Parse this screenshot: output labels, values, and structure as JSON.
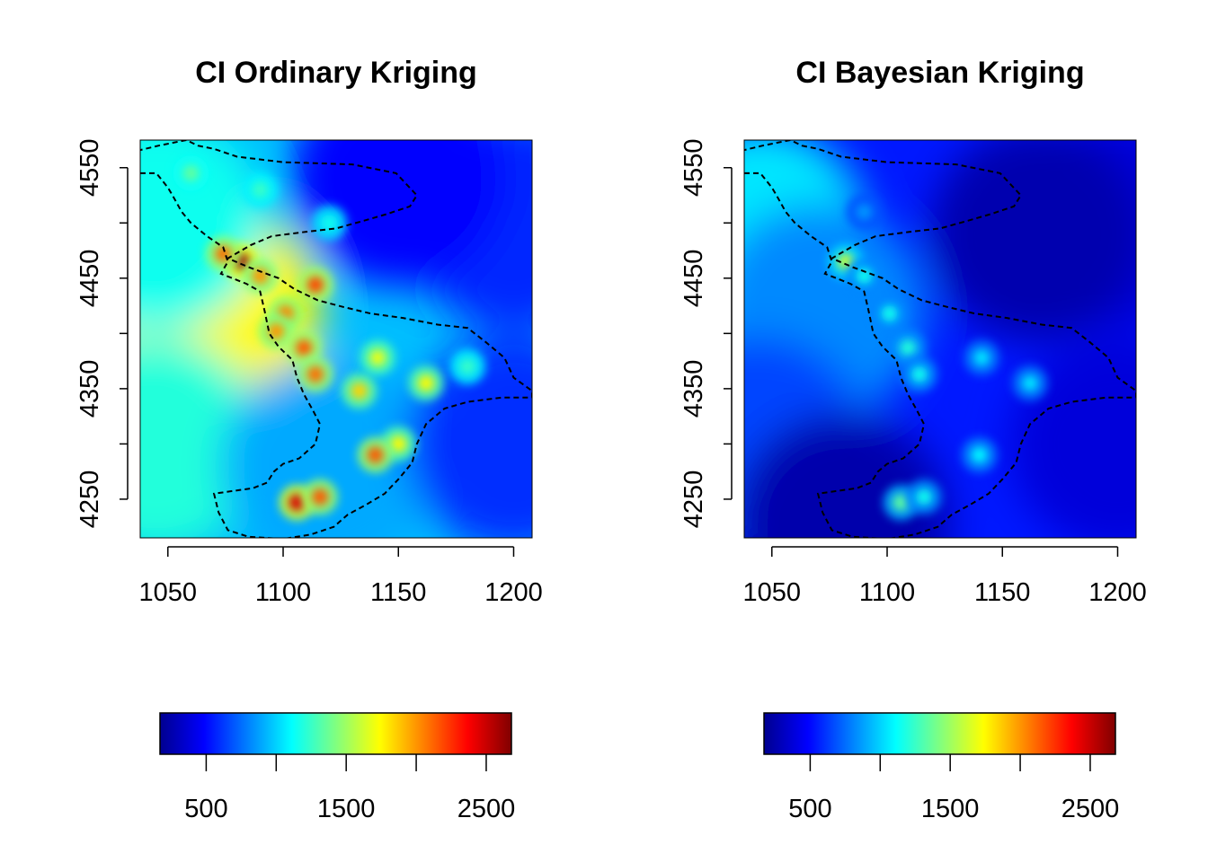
{
  "colorscale": [
    "#00008F",
    "#0000FF",
    "#0080FF",
    "#00FFFF",
    "#80FF80",
    "#FFFF00",
    "#FF8000",
    "#FF0000",
    "#800000"
  ],
  "boundary_color": "#000000",
  "chart_data": [
    {
      "type": "heatmap",
      "title": "CI Ordinary Kriging",
      "xlim": [
        1038,
        1208
      ],
      "ylim": [
        4215,
        4575
      ],
      "xticks": [
        1050,
        1100,
        1150,
        1200
      ],
      "yticks": [
        4250,
        4350,
        4450,
        4550
      ],
      "colorbar": {
        "range": [
          170,
          2680
        ],
        "ticks": [
          500,
          1500,
          2500
        ],
        "minor_ticks": [
          1000,
          2000
        ]
      },
      "background_gradient": [
        {
          "x": 1070,
          "y": 4420,
          "value": 1750
        },
        {
          "x": 1045,
          "y": 4500,
          "value": 1150
        },
        {
          "x": 1045,
          "y": 4300,
          "value": 1200
        },
        {
          "x": 1120,
          "y": 4280,
          "value": 900
        },
        {
          "x": 1200,
          "y": 4300,
          "value": 600
        },
        {
          "x": 1200,
          "y": 4500,
          "value": 580
        },
        {
          "x": 1150,
          "y": 4540,
          "value": 480
        }
      ],
      "hotspots": [
        {
          "x": 1082,
          "y": 4465,
          "value": 2600
        },
        {
          "x": 1074,
          "y": 4472,
          "value": 2100
        },
        {
          "x": 1090,
          "y": 4452,
          "value": 2000
        },
        {
          "x": 1114,
          "y": 4444,
          "value": 2200
        },
        {
          "x": 1101,
          "y": 4418,
          "value": 2050
        },
        {
          "x": 1097,
          "y": 4402,
          "value": 2000
        },
        {
          "x": 1109,
          "y": 4387,
          "value": 2150
        },
        {
          "x": 1114,
          "y": 4363,
          "value": 2100
        },
        {
          "x": 1133,
          "y": 4348,
          "value": 1850
        },
        {
          "x": 1141,
          "y": 4378,
          "value": 1700
        },
        {
          "x": 1162,
          "y": 4355,
          "value": 1750
        },
        {
          "x": 1150,
          "y": 4300,
          "value": 1750
        },
        {
          "x": 1140,
          "y": 4290,
          "value": 2150
        },
        {
          "x": 1106,
          "y": 4247,
          "value": 2450
        },
        {
          "x": 1116,
          "y": 4252,
          "value": 2150
        },
        {
          "x": 1090,
          "y": 4530,
          "value": 1250
        },
        {
          "x": 1060,
          "y": 4545,
          "value": 1350
        },
        {
          "x": 1120,
          "y": 4500,
          "value": 1150
        },
        {
          "x": 1180,
          "y": 4370,
          "value": 1250
        }
      ]
    },
    {
      "type": "heatmap",
      "title": "CI Bayesian Kriging",
      "xlim": [
        1038,
        1208
      ],
      "ylim": [
        4215,
        4575
      ],
      "xticks": [
        1050,
        1100,
        1150,
        1200
      ],
      "yticks": [
        4250,
        4350,
        4450,
        4550
      ],
      "colorbar": {
        "range": [
          170,
          2680
        ],
        "ticks": [
          500,
          1500,
          2500
        ],
        "minor_ticks": [
          1000,
          2000
        ]
      },
      "background_gradient": [
        {
          "x": 1045,
          "y": 4490,
          "value": 1050
        },
        {
          "x": 1070,
          "y": 4420,
          "value": 820
        },
        {
          "x": 1045,
          "y": 4300,
          "value": 650
        },
        {
          "x": 1080,
          "y": 4230,
          "value": 250
        },
        {
          "x": 1200,
          "y": 4300,
          "value": 380
        },
        {
          "x": 1200,
          "y": 4500,
          "value": 380
        },
        {
          "x": 1165,
          "y": 4490,
          "value": 260
        }
      ],
      "hotspots": [
        {
          "x": 1082,
          "y": 4465,
          "value": 1600
        },
        {
          "x": 1090,
          "y": 4452,
          "value": 1150
        },
        {
          "x": 1101,
          "y": 4418,
          "value": 1150
        },
        {
          "x": 1109,
          "y": 4387,
          "value": 1200
        },
        {
          "x": 1114,
          "y": 4363,
          "value": 1150
        },
        {
          "x": 1141,
          "y": 4378,
          "value": 1050
        },
        {
          "x": 1162,
          "y": 4355,
          "value": 1050
        },
        {
          "x": 1140,
          "y": 4290,
          "value": 1100
        },
        {
          "x": 1106,
          "y": 4247,
          "value": 1350
        },
        {
          "x": 1116,
          "y": 4252,
          "value": 1150
        },
        {
          "x": 1090,
          "y": 4510,
          "value": 850
        }
      ]
    }
  ],
  "boundary": [
    [
      1038,
      4545
    ],
    [
      1045,
      4545
    ],
    [
      1050,
      4532
    ],
    [
      1052,
      4525
    ],
    [
      1056,
      4510
    ],
    [
      1060,
      4500
    ],
    [
      1067,
      4488
    ],
    [
      1074,
      4478
    ],
    [
      1076,
      4465
    ],
    [
      1073,
      4454
    ],
    [
      1078,
      4450
    ],
    [
      1084,
      4445
    ],
    [
      1090,
      4438
    ],
    [
      1092,
      4420
    ],
    [
      1094,
      4400
    ],
    [
      1098,
      4388
    ],
    [
      1104,
      4376
    ],
    [
      1106,
      4360
    ],
    [
      1109,
      4345
    ],
    [
      1113,
      4330
    ],
    [
      1116,
      4318
    ],
    [
      1114,
      4300
    ],
    [
      1107,
      4287
    ],
    [
      1100,
      4282
    ],
    [
      1096,
      4275
    ],
    [
      1093,
      4265
    ],
    [
      1087,
      4260
    ],
    [
      1070,
      4255
    ],
    [
      1072,
      4238
    ],
    [
      1076,
      4222
    ],
    [
      1085,
      4216
    ],
    [
      1100,
      4214
    ],
    [
      1112,
      4218
    ],
    [
      1122,
      4225
    ],
    [
      1128,
      4236
    ],
    [
      1136,
      4245
    ],
    [
      1144,
      4255
    ],
    [
      1150,
      4268
    ],
    [
      1156,
      4283
    ],
    [
      1158,
      4300
    ],
    [
      1162,
      4318
    ],
    [
      1170,
      4332
    ],
    [
      1180,
      4338
    ],
    [
      1195,
      4342
    ],
    [
      1208,
      4342
    ],
    [
      1208,
      4348
    ],
    [
      1200,
      4360
    ],
    [
      1196,
      4378
    ],
    [
      1188,
      4392
    ],
    [
      1180,
      4405
    ],
    [
      1167,
      4408
    ],
    [
      1152,
      4414
    ],
    [
      1138,
      4418
    ],
    [
      1126,
      4424
    ],
    [
      1115,
      4430
    ],
    [
      1105,
      4440
    ],
    [
      1098,
      4450
    ],
    [
      1085,
      4460
    ],
    [
      1076,
      4468
    ],
    [
      1086,
      4480
    ],
    [
      1095,
      4488
    ],
    [
      1110,
      4492
    ],
    [
      1123,
      4495
    ],
    [
      1135,
      4502
    ],
    [
      1145,
      4508
    ],
    [
      1155,
      4515
    ],
    [
      1158,
      4525
    ],
    [
      1149,
      4545
    ],
    [
      1130,
      4553
    ],
    [
      1100,
      4555
    ],
    [
      1080,
      4560
    ],
    [
      1070,
      4567
    ],
    [
      1063,
      4570
    ],
    [
      1058,
      4575
    ],
    [
      1046,
      4570
    ],
    [
      1038,
      4566
    ]
  ]
}
